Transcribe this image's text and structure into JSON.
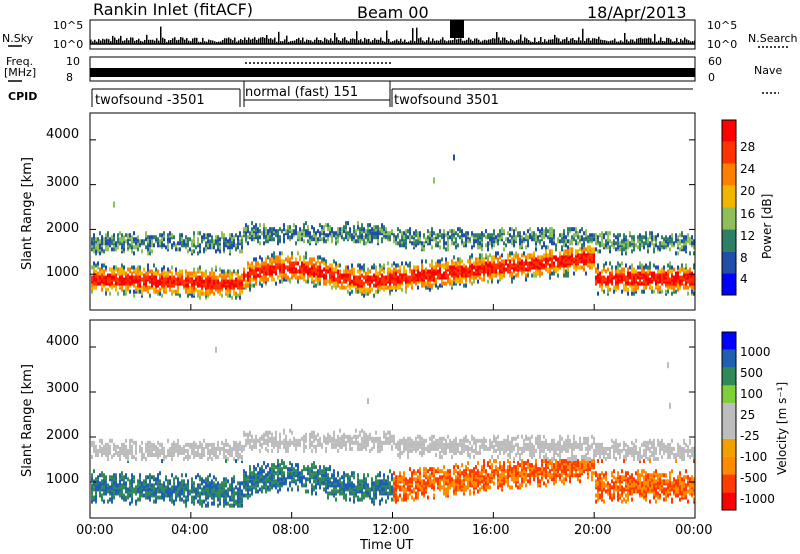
{
  "header": {
    "station": "Rankin Inlet (fitACF)",
    "beam": "Beam 00",
    "date": "18/Apr/2013"
  },
  "noise_panel": {
    "left_label": "N.Sky",
    "right_label": "N.Search",
    "left_ticks": [
      "10^5",
      "10^0"
    ],
    "right_ticks": [
      "10^5",
      "10^0"
    ]
  },
  "freq_panel": {
    "left_label_1": "Freq.",
    "left_label_2": "[MHz]",
    "left_ticks": [
      "10",
      "8"
    ],
    "right_ticks": [
      "60",
      "0"
    ],
    "right_label": "Nave"
  },
  "cpid_panel": {
    "label": "CPID",
    "segments": [
      {
        "name": "twofsound -3501",
        "start_hour": 0,
        "end_hour": 6
      },
      {
        "name": "normal (fast) 151",
        "start_hour": 6,
        "end_hour": 12
      },
      {
        "name": "twofsound 3501",
        "start_hour": 12,
        "end_hour": 24
      }
    ]
  },
  "chart_data": [
    {
      "type": "heatmap",
      "panel": "power",
      "ylabel": "Slant Range [km]",
      "xlabel": "",
      "xlim": [
        0,
        24
      ],
      "ylim": [
        200,
        4600
      ],
      "y_ticks": [
        1000,
        2000,
        3000,
        4000
      ],
      "colorbar": {
        "label": "Power [dB]",
        "ticks": [
          "28",
          "24",
          "20",
          "16",
          "12",
          "8",
          "4"
        ],
        "colors": [
          "#0000ff",
          "#1f4fa8",
          "#2f7f66",
          "#8fbf5a",
          "#f2b600",
          "#ff7f00",
          "#ff3300",
          "#ff0000"
        ]
      }
    },
    {
      "type": "heatmap",
      "panel": "velocity",
      "ylabel": "Slant Range [km]",
      "xlabel": "Time UT",
      "xlim": [
        0,
        24
      ],
      "ylim": [
        200,
        4600
      ],
      "x_ticks": [
        "00:00",
        "04:00",
        "08:00",
        "12:00",
        "16:00",
        "20:00",
        "00:00"
      ],
      "y_ticks": [
        1000,
        2000,
        3000,
        4000
      ],
      "colorbar": {
        "label": "Velocity [m s⁻¹]",
        "ticks": [
          "1000",
          "500",
          "100",
          "25",
          "-25",
          "-100",
          "-500",
          "-1000"
        ],
        "colors": [
          "#ff0000",
          "#ff3b00",
          "#ff8a00",
          "#f2a000",
          "#bdbdbd",
          "#bdbdbd",
          "#7fcf3a",
          "#2f8a58",
          "#1f5fb0",
          "#0000ff"
        ]
      }
    }
  ]
}
